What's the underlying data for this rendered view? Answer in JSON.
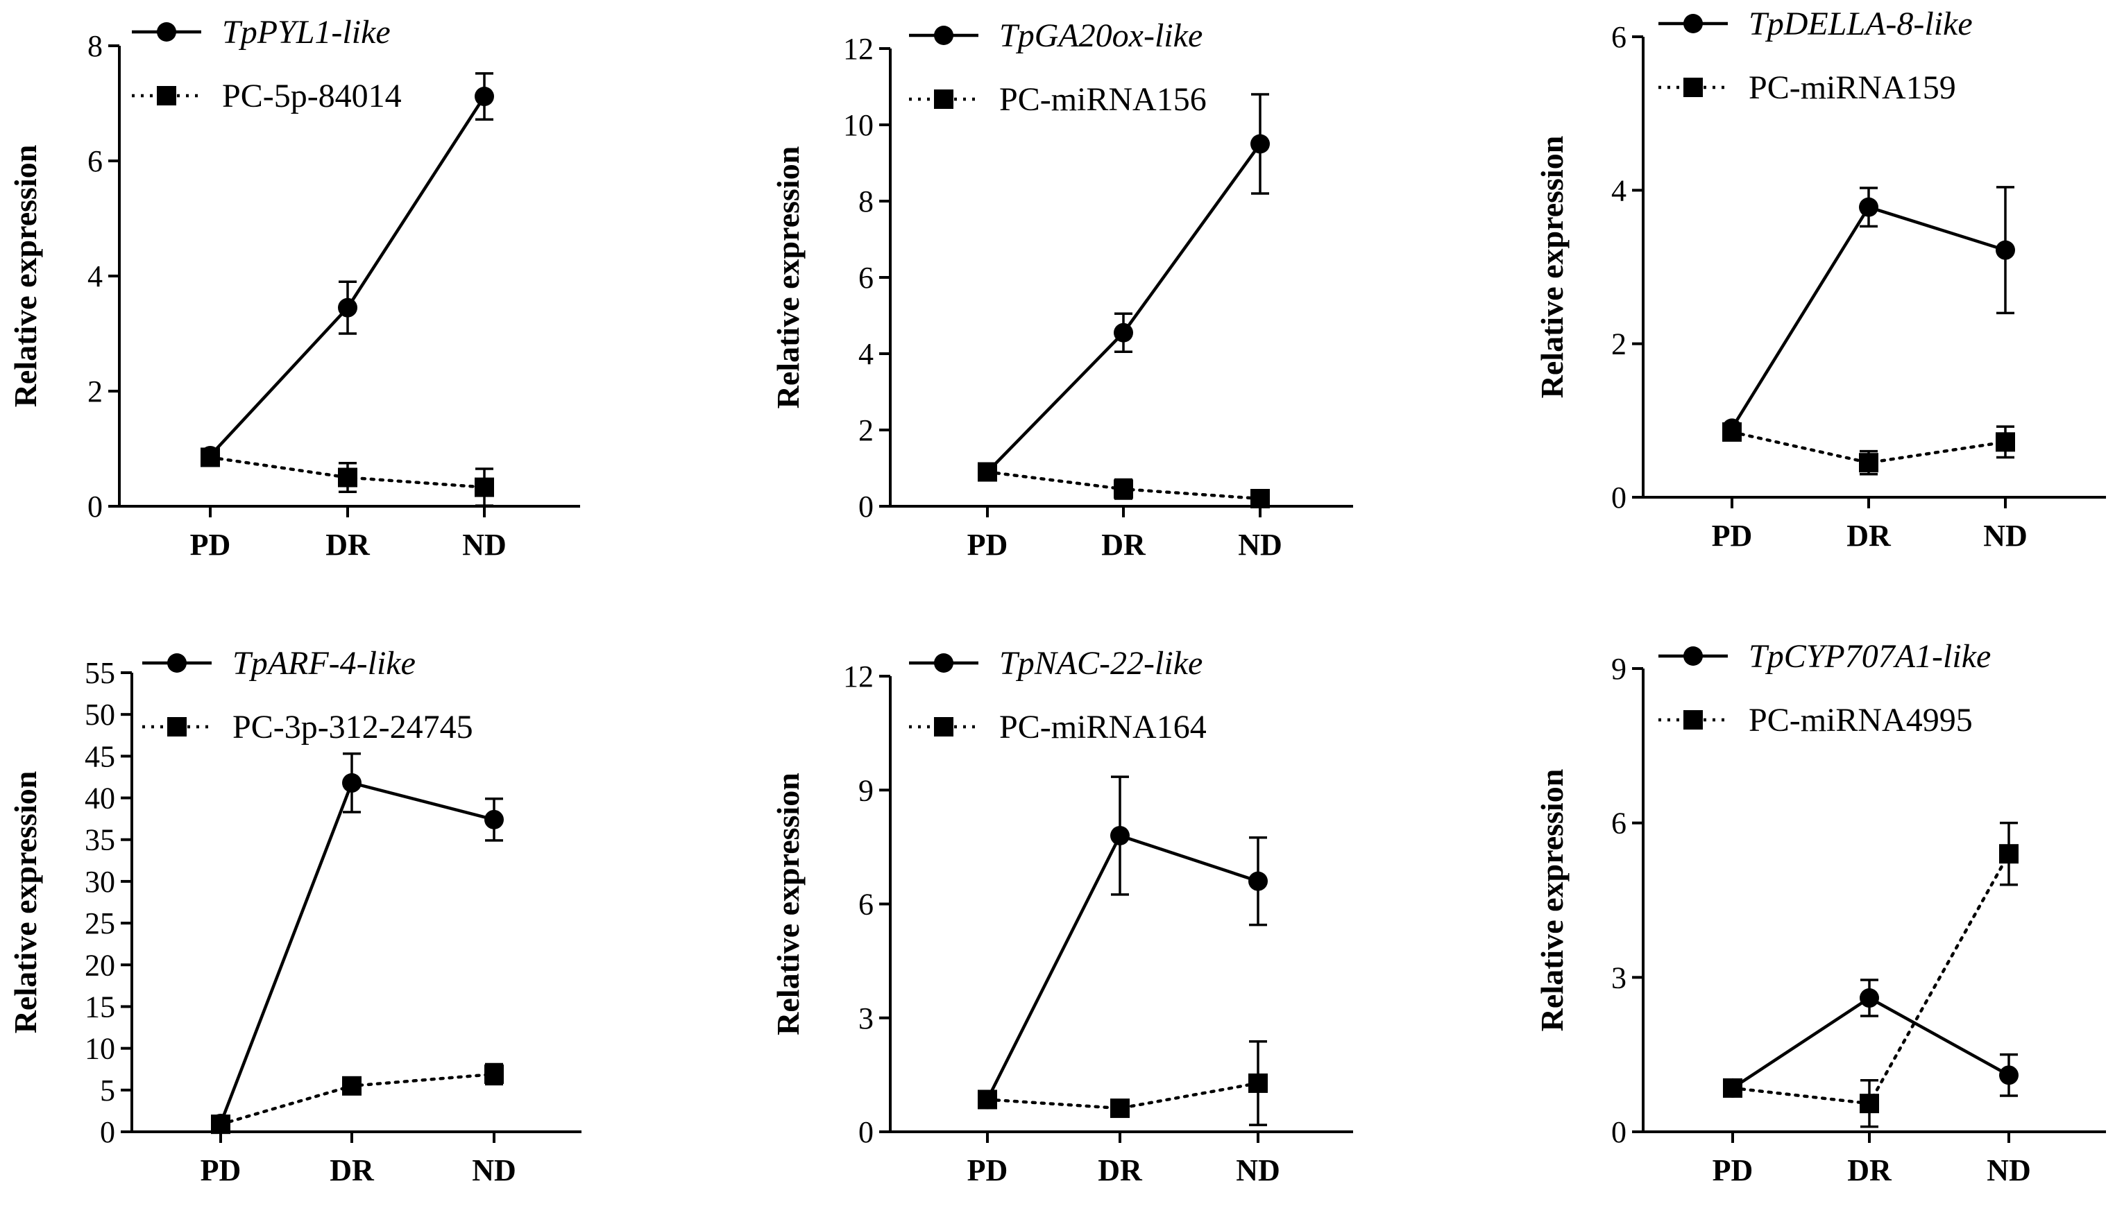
{
  "figure": {
    "background": "#ffffff",
    "ink": "#000000"
  },
  "chart_data": [
    {
      "type": "line",
      "panel": "top-left",
      "title": "",
      "xlabel": "",
      "ylabel": "Relative expression",
      "categories": [
        "PD",
        "DR",
        "ND"
      ],
      "ylim": [
        0,
        8
      ],
      "yticks": [
        0,
        2,
        4,
        6,
        8
      ],
      "legend_position": "top-center",
      "series": [
        {
          "name": "TpPYL1-like",
          "italic": true,
          "marker": "circle",
          "line": "solid",
          "values": [
            0.88,
            3.45,
            7.12
          ],
          "errors": [
            0.05,
            0.45,
            0.4
          ]
        },
        {
          "name": "PC-5p-84014",
          "italic": false,
          "marker": "square",
          "line": "dotted",
          "values": [
            0.85,
            0.5,
            0.33
          ],
          "errors": [
            0.05,
            0.25,
            0.32
          ]
        }
      ]
    },
    {
      "type": "line",
      "panel": "top-middle",
      "title": "",
      "xlabel": "",
      "ylabel": "Relative expression",
      "categories": [
        "PD",
        "DR",
        "ND"
      ],
      "ylim": [
        0,
        12
      ],
      "yticks": [
        0,
        2,
        4,
        6,
        8,
        10,
        12
      ],
      "legend_position": "top-center",
      "series": [
        {
          "name": "TpGA20ox-like",
          "italic": true,
          "marker": "circle",
          "line": "solid",
          "values": [
            0.9,
            4.55,
            9.5
          ],
          "errors": [
            0.05,
            0.5,
            1.3
          ]
        },
        {
          "name": "PC-miRNA156",
          "italic": false,
          "marker": "square",
          "line": "dotted",
          "values": [
            0.9,
            0.45,
            0.2
          ],
          "errors": [
            0.05,
            0.25,
            0.1
          ]
        }
      ]
    },
    {
      "type": "line",
      "panel": "top-right",
      "title": "",
      "xlabel": "",
      "ylabel": "Relative expression",
      "categories": [
        "PD",
        "DR",
        "ND"
      ],
      "ylim": [
        0,
        6
      ],
      "yticks": [
        0,
        2,
        4,
        6
      ],
      "legend_position": "top-center",
      "series": [
        {
          "name": "TpDELLA-8-like",
          "italic": true,
          "marker": "circle",
          "line": "solid",
          "values": [
            0.9,
            3.78,
            3.22
          ],
          "errors": [
            0.05,
            0.25,
            0.82
          ]
        },
        {
          "name": "PC-miRNA159",
          "italic": false,
          "marker": "square",
          "line": "dotted",
          "values": [
            0.85,
            0.45,
            0.72
          ],
          "errors": [
            0.05,
            0.15,
            0.2
          ]
        }
      ]
    },
    {
      "type": "line",
      "panel": "bottom-left",
      "title": "",
      "xlabel": "",
      "ylabel": "Relative expression",
      "categories": [
        "PD",
        "DR",
        "ND"
      ],
      "ylim": [
        0,
        55
      ],
      "yticks": [
        0,
        5,
        10,
        15,
        20,
        25,
        30,
        35,
        40,
        45,
        50,
        55
      ],
      "legend_position": "top-center",
      "series": [
        {
          "name": "TpARF-4-like",
          "italic": true,
          "marker": "circle",
          "line": "solid",
          "values": [
            1.0,
            41.8,
            37.4
          ],
          "errors": [
            0.2,
            3.5,
            2.5
          ]
        },
        {
          "name": "PC-3p-312-24745",
          "italic": false,
          "marker": "square",
          "line": "dotted",
          "values": [
            0.9,
            5.5,
            6.9
          ],
          "errors": [
            0.2,
            0.8,
            1.2
          ]
        }
      ]
    },
    {
      "type": "line",
      "panel": "bottom-middle",
      "title": "",
      "xlabel": "",
      "ylabel": "Relative expression",
      "categories": [
        "PD",
        "DR",
        "ND"
      ],
      "ylim": [
        0,
        12
      ],
      "yticks": [
        0,
        3,
        6,
        9,
        12
      ],
      "legend_position": "top-center",
      "series": [
        {
          "name": "TpNAC-22-like",
          "italic": true,
          "marker": "circle",
          "line": "solid",
          "values": [
            0.85,
            7.8,
            6.6
          ],
          "errors": [
            0.05,
            1.55,
            1.15
          ]
        },
        {
          "name": "PC-miRNA164",
          "italic": false,
          "marker": "square",
          "line": "dotted",
          "values": [
            0.85,
            0.62,
            1.28
          ],
          "errors": [
            0.05,
            0.1,
            1.1
          ]
        }
      ]
    },
    {
      "type": "line",
      "panel": "bottom-right",
      "title": "",
      "xlabel": "",
      "ylabel": "Relative expression",
      "categories": [
        "PD",
        "DR",
        "ND"
      ],
      "ylim": [
        0,
        9
      ],
      "yticks": [
        0,
        3,
        6,
        9
      ],
      "legend_position": "top-center",
      "series": [
        {
          "name": "TpCYP707A1-like",
          "italic": true,
          "marker": "circle",
          "line": "solid",
          "values": [
            0.85,
            2.6,
            1.1
          ],
          "errors": [
            0.05,
            0.35,
            0.4
          ]
        },
        {
          "name": "PC-miRNA4995",
          "italic": false,
          "marker": "square",
          "line": "dotted",
          "values": [
            0.85,
            0.55,
            5.4
          ],
          "errors": [
            0.05,
            0.45,
            0.6
          ]
        }
      ]
    }
  ]
}
